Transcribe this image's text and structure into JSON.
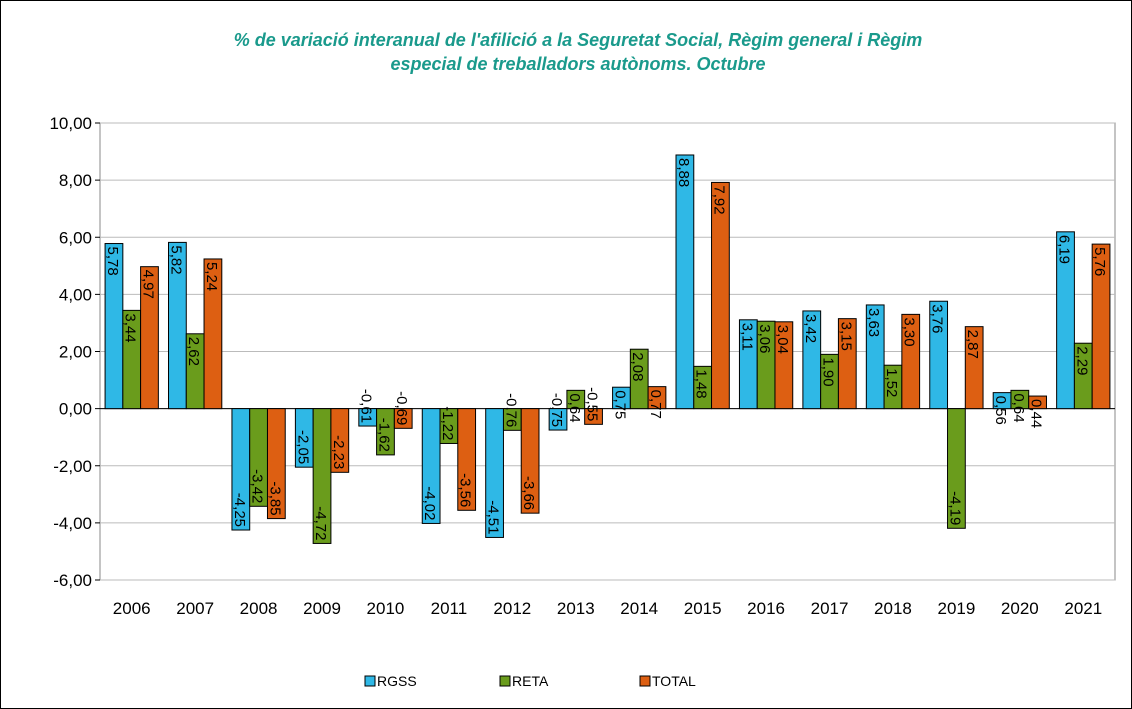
{
  "chart_data": {
    "type": "bar",
    "title": "% de variació interanual de l'afilició a la Seguretat Social, Règim general i Règim especial de treballadors autònoms. Octubre",
    "categories": [
      "2006",
      "2007",
      "2008",
      "2009",
      "2010",
      "2011",
      "2012",
      "2013",
      "2014",
      "2015",
      "2016",
      "2017",
      "2018",
      "2019",
      "2020",
      "2021"
    ],
    "series": [
      {
        "name": "RGSS",
        "color": "#2fb8e6",
        "values": [
          5.78,
          5.82,
          -4.25,
          -2.05,
          -0.61,
          -4.02,
          -4.51,
          -0.75,
          0.75,
          8.88,
          3.11,
          3.42,
          3.63,
          3.76,
          0.56,
          6.19
        ],
        "value_labels": [
          "5,78",
          "5,82",
          "-4,25",
          "-2,05",
          "-0,61",
          "-4,02",
          "-4,51",
          "-0,75",
          "0,75",
          "8,88",
          "3,11",
          "3,42",
          "3,63",
          "3,76",
          "0,56",
          "6,19"
        ]
      },
      {
        "name": "RETA",
        "color": "#6a9c1c",
        "values": [
          3.44,
          2.62,
          -3.42,
          -4.72,
          -1.62,
          -1.22,
          -0.76,
          0.64,
          2.08,
          1.48,
          3.06,
          1.9,
          1.52,
          -4.19,
          0.64,
          2.29
        ],
        "value_labels": [
          "3,44",
          "2,62",
          "-3,42",
          "-4,72",
          "-1,62",
          "-1,22",
          "-0,76",
          "0,64",
          "2,08",
          "1,48",
          "3,06",
          "1,90",
          "1,52",
          "-4,19",
          "0,64",
          "2,29"
        ]
      },
      {
        "name": "TOTAL",
        "color": "#dd5f12",
        "values": [
          4.97,
          5.24,
          -3.85,
          -2.23,
          -0.69,
          -3.56,
          -3.66,
          -0.55,
          0.77,
          7.92,
          3.04,
          3.15,
          3.3,
          2.87,
          0.44,
          5.76
        ],
        "value_labels": [
          "4,97",
          "5,24",
          "-3,85",
          "-2,23",
          "-0,69",
          "-3,56",
          "-3,66",
          "-0,55",
          "0,77",
          "7,92",
          "3,04",
          "3,15",
          "3,30",
          "2,87",
          "0,44",
          "5,76"
        ]
      }
    ],
    "ylim": [
      -6,
      10
    ],
    "yticks": [
      {
        "value": -6,
        "label": "-6,00"
      },
      {
        "value": -4,
        "label": "-4,00"
      },
      {
        "value": -2,
        "label": "-2,00"
      },
      {
        "value": 0,
        "label": "0,00"
      },
      {
        "value": 2,
        "label": "2,00"
      },
      {
        "value": 4,
        "label": "4,00"
      },
      {
        "value": 6,
        "label": "6,00"
      },
      {
        "value": 8,
        "label": "8,00"
      },
      {
        "value": 10,
        "label": "10,00"
      }
    ],
    "grid": true,
    "legend": "bottom"
  }
}
